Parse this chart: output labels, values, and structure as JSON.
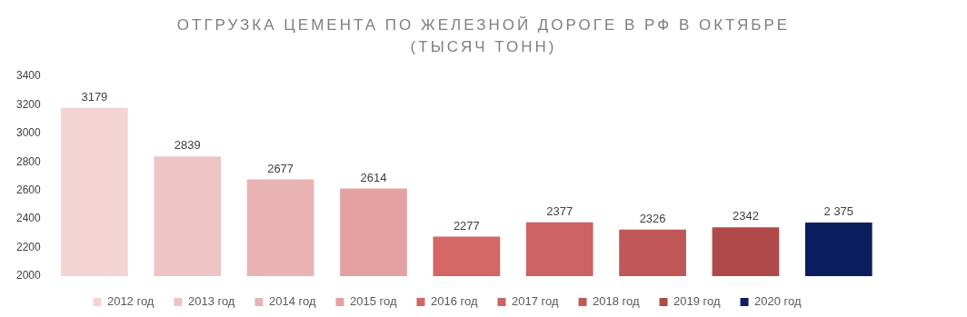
{
  "chart_data": {
    "type": "bar",
    "title": "ОТГРУЗКА ЦЕМЕНТА ПО ЖЕЛЕЗНОЙ ДОРОГЕ В РФ В ОКТЯБРЕ",
    "subtitle": "(ТЫСЯЧ ТОНН)",
    "categories": [
      null
    ],
    "series": [
      {
        "name": "2012 год",
        "color": "#f3d3d3",
        "values": [
          3179
        ],
        "value_labels": [
          "3179"
        ]
      },
      {
        "name": "2013 год",
        "color": "#efc4c4",
        "values": [
          2839
        ],
        "value_labels": [
          "2839"
        ]
      },
      {
        "name": "2014 год",
        "color": "#e9b2b2",
        "values": [
          2677
        ],
        "value_labels": [
          "2677"
        ]
      },
      {
        "name": "2015 год",
        "color": "#e3a2a2",
        "values": [
          2614
        ],
        "value_labels": [
          "2614"
        ]
      },
      {
        "name": "2016 год",
        "color": "#d46666",
        "values": [
          2277
        ],
        "value_labels": [
          "2277"
        ]
      },
      {
        "name": "2017 год",
        "color": "#cc6262",
        "values": [
          2377
        ],
        "value_labels": [
          "2377"
        ]
      },
      {
        "name": "2018 год",
        "color": "#c05858",
        "values": [
          2326
        ],
        "value_labels": [
          "2326"
        ]
      },
      {
        "name": "2019 год",
        "color": "#b04a4a",
        "values": [
          2342
        ],
        "value_labels": [
          "2342"
        ]
      },
      {
        "name": "2020 год",
        "color": "#0b1f5e",
        "values": [
          2375
        ],
        "value_labels": [
          "2 375"
        ]
      }
    ],
    "ylim": [
      2000,
      3400
    ],
    "yticks": [
      2000,
      2200,
      2400,
      2600,
      2800,
      3000,
      3200,
      3400
    ],
    "grid": false,
    "legend": "bottom"
  }
}
